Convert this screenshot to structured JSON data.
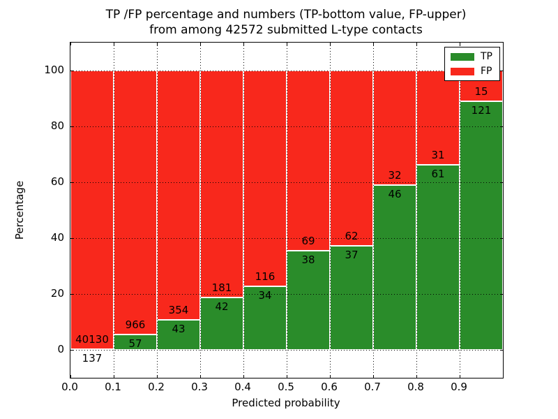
{
  "title": {
    "line1": "TP /FP percentage and numbers (TP-bottom value, FP-upper)",
    "line2": "from among 42572 submitted L-type contacts"
  },
  "axes": {
    "xlabel": "Predicted probability",
    "ylabel": "Percentage",
    "x_tick_labels": [
      "0.0",
      "0.1",
      "0.2",
      "0.3",
      "0.4",
      "0.5",
      "0.6",
      "0.7",
      "0.8",
      "0.9"
    ],
    "x_tick_values": [
      0.0,
      0.1,
      0.2,
      0.3,
      0.4,
      0.5,
      0.6,
      0.7,
      0.8,
      0.9
    ],
    "y_tick_labels": [
      "0",
      "20",
      "40",
      "60",
      "80",
      "100"
    ],
    "y_tick_values": [
      0,
      20,
      40,
      60,
      80,
      100
    ],
    "xlim": [
      0.0,
      1.0
    ],
    "ylim": [
      -10,
      110
    ],
    "grid": "dotted"
  },
  "legend": {
    "position": "upper-right",
    "items": [
      {
        "label": "TP",
        "color": "#2a8c2a"
      },
      {
        "label": "FP",
        "color": "#f8281c"
      }
    ]
  },
  "colors": {
    "tp": "#2a8c2a",
    "fp": "#f8281c",
    "bar_edge": "#ffffff",
    "text": "#000000"
  },
  "chart_data": {
    "type": "bar",
    "stacked": true,
    "normalized_to_percent": true,
    "title": "TP /FP percentage and numbers (TP-bottom value, FP-upper) from among 42572 submitted L-type contacts",
    "xlabel": "Predicted probability",
    "ylabel": "Percentage",
    "bin_width": 0.1,
    "categories": [
      0.0,
      0.1,
      0.2,
      0.3,
      0.4,
      0.5,
      0.6,
      0.7,
      0.8,
      0.9
    ],
    "series": [
      {
        "name": "TP",
        "counts": [
          137,
          57,
          43,
          42,
          34,
          38,
          37,
          46,
          61,
          121
        ]
      },
      {
        "name": "FP",
        "counts": [
          40130,
          966,
          354,
          181,
          116,
          69,
          62,
          32,
          31,
          15
        ]
      }
    ],
    "tp_percent": [
      0.3,
      5.6,
      10.8,
      18.8,
      22.7,
      35.5,
      37.4,
      59.0,
      66.3,
      89.0
    ],
    "total_contacts": 42572,
    "xlim": [
      0.0,
      1.0
    ],
    "ylim": [
      -10,
      110
    ],
    "legend_position": "upper-right",
    "grid": true
  }
}
